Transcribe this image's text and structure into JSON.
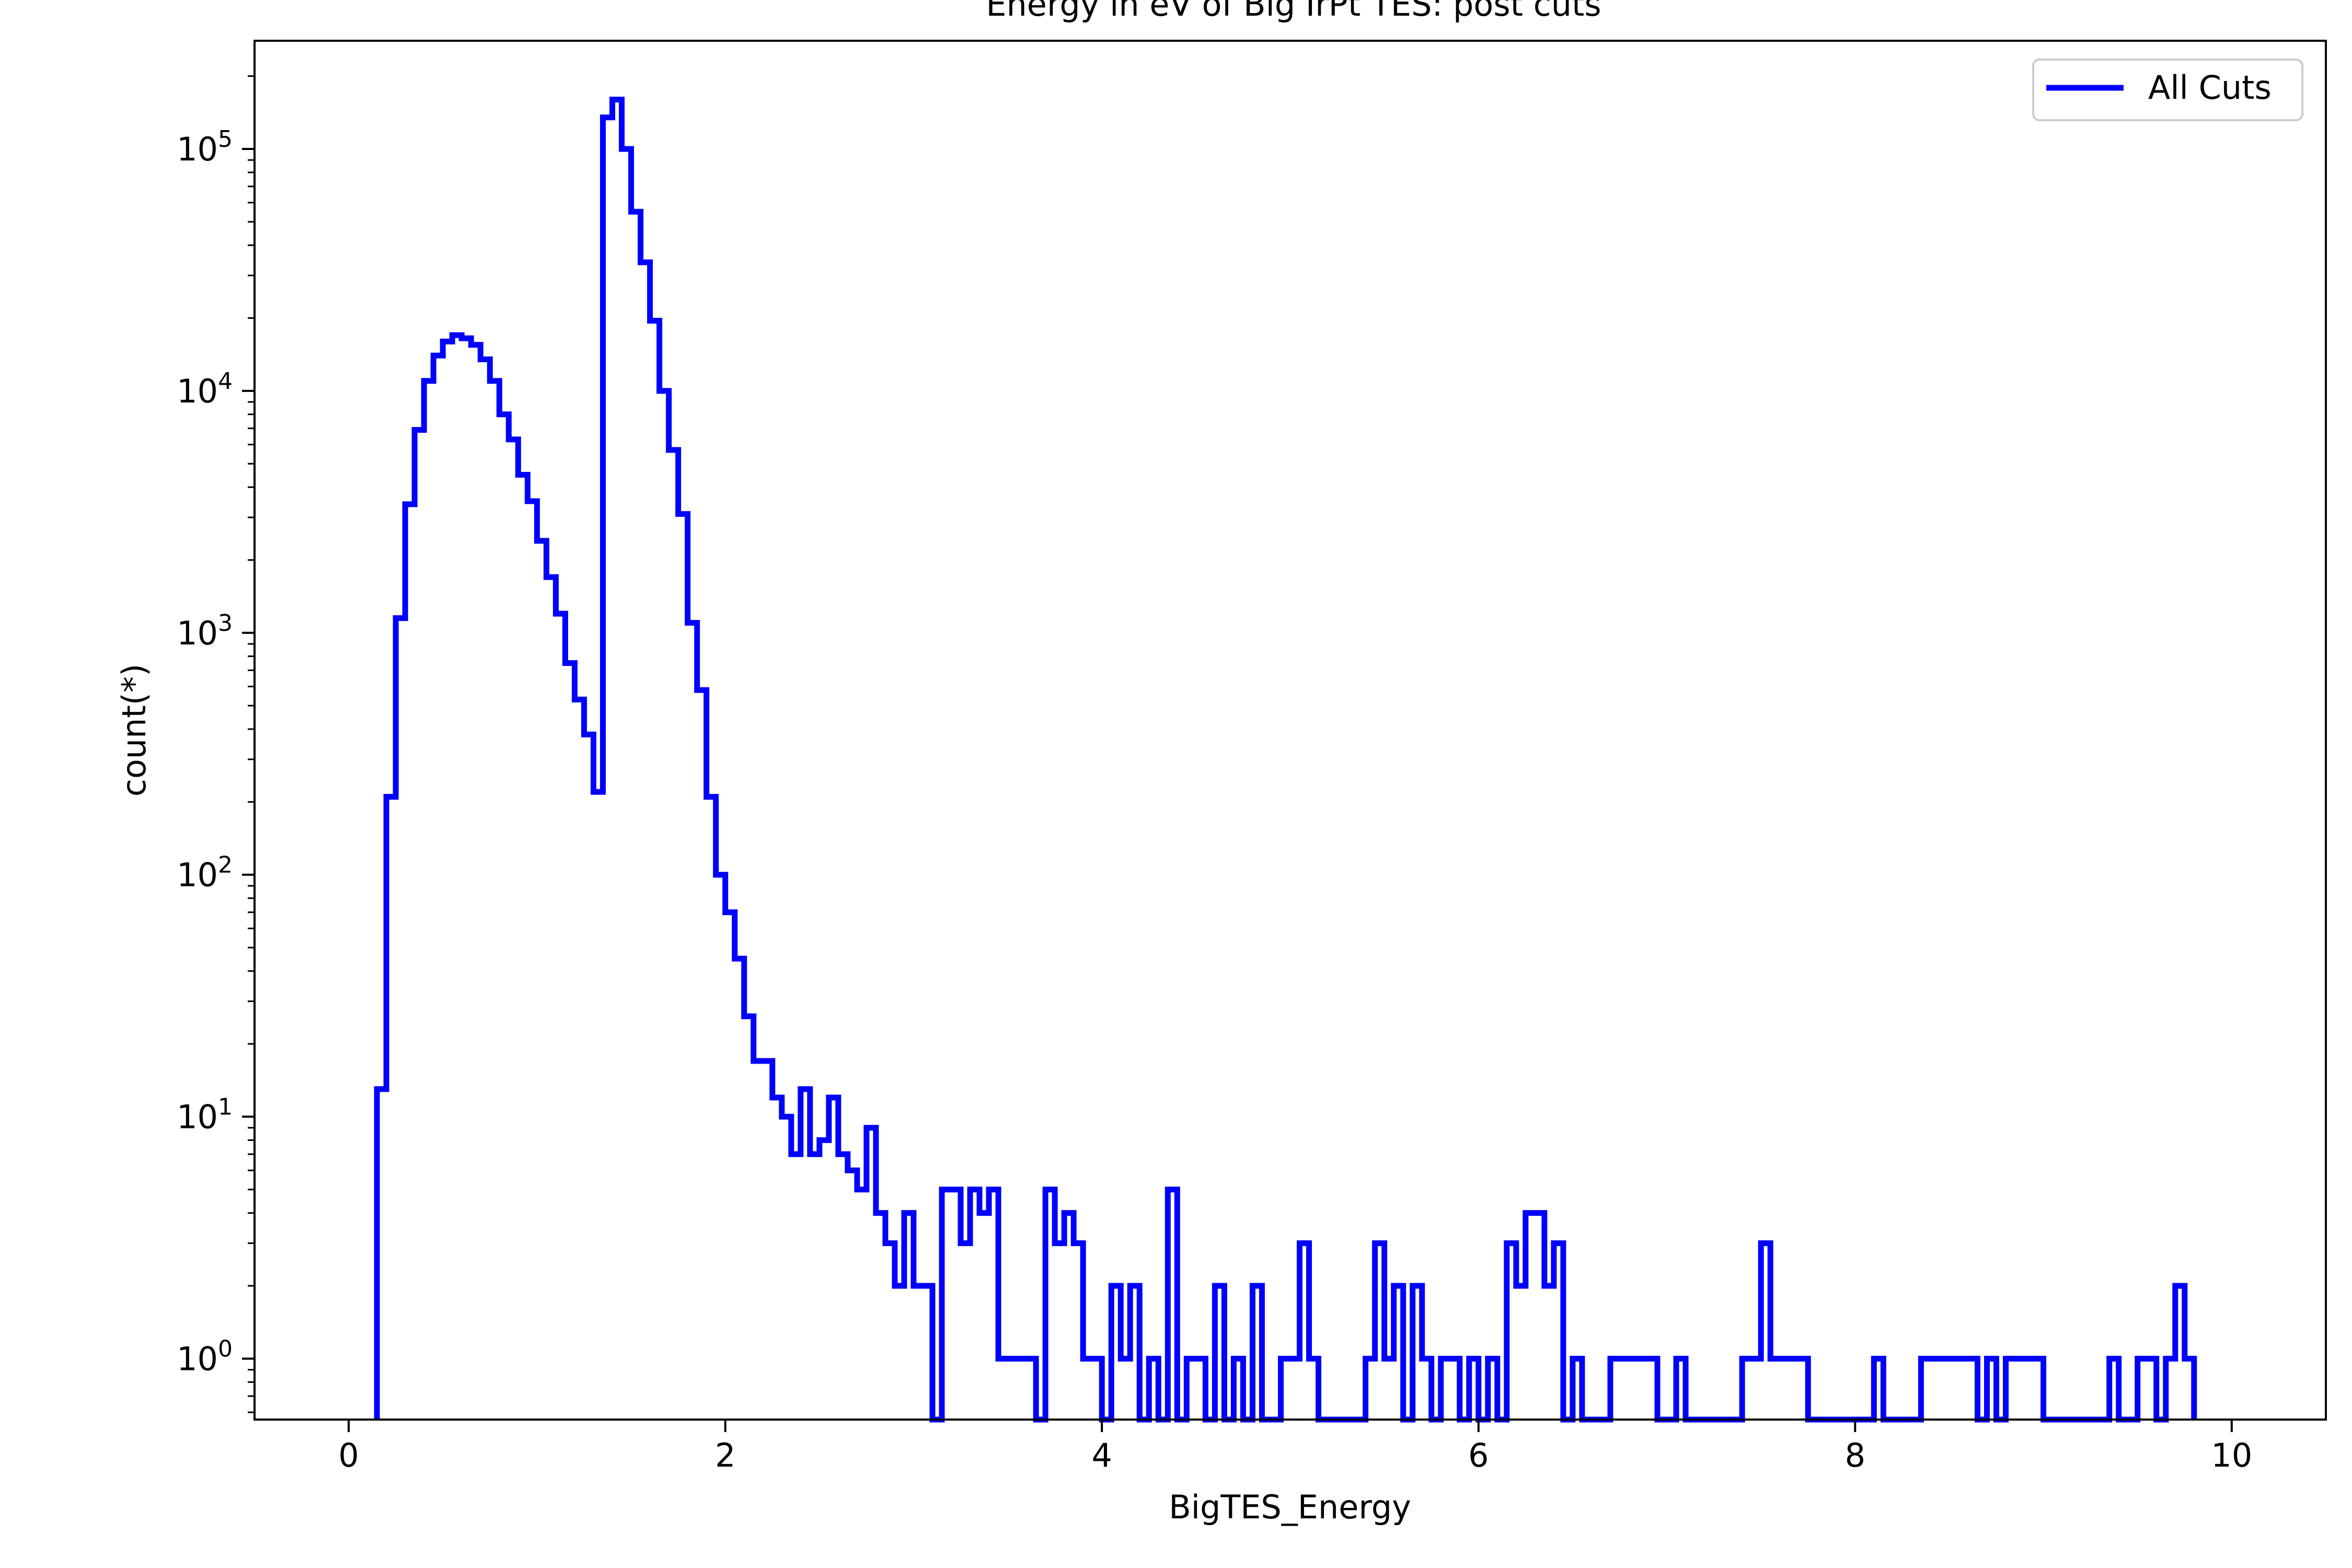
{
  "chart_data": {
    "type": "step-histogram",
    "title": "Energy in eV of Big IrPt TES: post cuts",
    "xlabel": "BigTES_Energy",
    "ylabel": "count(*)",
    "xlim": [
      -0.5,
      10.5
    ],
    "ylim": [
      0.56,
      280000
    ],
    "yscale": "log",
    "x_ticks": [
      0,
      2,
      4,
      6,
      8,
      10
    ],
    "y_ticks": [
      1,
      10,
      100,
      1000,
      10000,
      100000
    ],
    "x_tick_labels": [
      "0",
      "2",
      "4",
      "6",
      "8",
      "10"
    ],
    "y_tick_labels": [
      {
        "base": "10",
        "exp": "0"
      },
      {
        "base": "10",
        "exp": "1"
      },
      {
        "base": "10",
        "exp": "2"
      },
      {
        "base": "10",
        "exp": "3"
      },
      {
        "base": "10",
        "exp": "4"
      },
      {
        "base": "10",
        "exp": "5"
      }
    ],
    "grid": false,
    "legend": {
      "position": "top-right",
      "entries": [
        "All Cuts"
      ]
    },
    "series": [
      {
        "name": "All Cuts",
        "color": "#0000ff",
        "bin_width": 0.05,
        "bins": [
          [
            0.15,
            13
          ],
          [
            0.2,
            210
          ],
          [
            0.25,
            1150
          ],
          [
            0.3,
            3400
          ],
          [
            0.35,
            6900
          ],
          [
            0.4,
            11000
          ],
          [
            0.45,
            14000
          ],
          [
            0.5,
            16000
          ],
          [
            0.55,
            17000
          ],
          [
            0.6,
            16500
          ],
          [
            0.65,
            15500
          ],
          [
            0.7,
            13500
          ],
          [
            0.75,
            11000
          ],
          [
            0.8,
            8000
          ],
          [
            0.85,
            6300
          ],
          [
            0.9,
            4500
          ],
          [
            0.95,
            3500
          ],
          [
            1.0,
            2400
          ],
          [
            1.05,
            1700
          ],
          [
            1.1,
            1200
          ],
          [
            1.15,
            750
          ],
          [
            1.2,
            530
          ],
          [
            1.25,
            380
          ],
          [
            1.3,
            220
          ],
          [
            1.35,
            135000
          ],
          [
            1.4,
            160000
          ],
          [
            1.45,
            100000
          ],
          [
            1.5,
            55000
          ],
          [
            1.55,
            34000
          ],
          [
            1.6,
            19500
          ],
          [
            1.65,
            10000
          ],
          [
            1.7,
            5700
          ],
          [
            1.75,
            3100
          ],
          [
            1.8,
            1100
          ],
          [
            1.85,
            580
          ],
          [
            1.9,
            210
          ],
          [
            1.95,
            100
          ],
          [
            2.0,
            70
          ],
          [
            2.05,
            45
          ],
          [
            2.1,
            26
          ],
          [
            2.15,
            17
          ],
          [
            2.2,
            17
          ],
          [
            2.25,
            12
          ],
          [
            2.3,
            10
          ],
          [
            2.35,
            7
          ],
          [
            2.4,
            13
          ],
          [
            2.45,
            7
          ],
          [
            2.5,
            8
          ],
          [
            2.55,
            12
          ],
          [
            2.6,
            7
          ],
          [
            2.65,
            6
          ],
          [
            2.7,
            5
          ],
          [
            2.75,
            9
          ],
          [
            2.8,
            4
          ],
          [
            2.85,
            3
          ],
          [
            2.9,
            2
          ],
          [
            2.95,
            4
          ],
          [
            3.0,
            2
          ],
          [
            3.05,
            2
          ],
          [
            3.1,
            0.3
          ],
          [
            3.15,
            5
          ],
          [
            3.2,
            5
          ],
          [
            3.25,
            3
          ],
          [
            3.3,
            5
          ],
          [
            3.35,
            4
          ],
          [
            3.4,
            5
          ],
          [
            3.45,
            1
          ],
          [
            3.5,
            1
          ],
          [
            3.55,
            1
          ],
          [
            3.6,
            1
          ],
          [
            3.65,
            0.3
          ],
          [
            3.7,
            5
          ],
          [
            3.75,
            3
          ],
          [
            3.8,
            4
          ],
          [
            3.85,
            3
          ],
          [
            3.9,
            1
          ],
          [
            3.95,
            1
          ],
          [
            4.0,
            0.3
          ],
          [
            4.05,
            2
          ],
          [
            4.1,
            1
          ],
          [
            4.15,
            2
          ],
          [
            4.2,
            0.3
          ],
          [
            4.25,
            1
          ],
          [
            4.3,
            0.3
          ],
          [
            4.35,
            5
          ],
          [
            4.4,
            0.3
          ],
          [
            4.45,
            1
          ],
          [
            4.5,
            1
          ],
          [
            4.55,
            0.3
          ],
          [
            4.6,
            2
          ],
          [
            4.65,
            0.3
          ],
          [
            4.7,
            1
          ],
          [
            4.75,
            0.3
          ],
          [
            4.8,
            2
          ],
          [
            4.85,
            0.3
          ],
          [
            4.9,
            0.3
          ],
          [
            4.95,
            1
          ],
          [
            5.0,
            1
          ],
          [
            5.05,
            3
          ],
          [
            5.1,
            1
          ],
          [
            5.15,
            0.3
          ],
          [
            5.2,
            0.3
          ],
          [
            5.25,
            0.3
          ],
          [
            5.3,
            0.3
          ],
          [
            5.35,
            0.3
          ],
          [
            5.4,
            1
          ],
          [
            5.45,
            3
          ],
          [
            5.5,
            1
          ],
          [
            5.55,
            2
          ],
          [
            5.6,
            0.3
          ],
          [
            5.65,
            2
          ],
          [
            5.7,
            1
          ],
          [
            5.75,
            0.3
          ],
          [
            5.8,
            1
          ],
          [
            5.85,
            1
          ],
          [
            5.9,
            0.3
          ],
          [
            5.95,
            1
          ],
          [
            6.0,
            0.3
          ],
          [
            6.05,
            1
          ],
          [
            6.1,
            0.3
          ],
          [
            6.15,
            3
          ],
          [
            6.2,
            2
          ],
          [
            6.25,
            4
          ],
          [
            6.3,
            4
          ],
          [
            6.35,
            2
          ],
          [
            6.4,
            3
          ],
          [
            6.45,
            0.3
          ],
          [
            6.5,
            1
          ],
          [
            6.55,
            0.3
          ],
          [
            6.6,
            0.3
          ],
          [
            6.65,
            0.3
          ],
          [
            6.7,
            1
          ],
          [
            6.75,
            1
          ],
          [
            6.8,
            1
          ],
          [
            6.85,
            1
          ],
          [
            6.9,
            1
          ],
          [
            6.95,
            0.3
          ],
          [
            7.0,
            0.3
          ],
          [
            7.05,
            1
          ],
          [
            7.1,
            0.3
          ],
          [
            7.15,
            0.3
          ],
          [
            7.2,
            0.3
          ],
          [
            7.25,
            0.3
          ],
          [
            7.3,
            0.3
          ],
          [
            7.35,
            0.3
          ],
          [
            7.4,
            1
          ],
          [
            7.45,
            1
          ],
          [
            7.5,
            3
          ],
          [
            7.55,
            1
          ],
          [
            7.6,
            1
          ],
          [
            7.65,
            1
          ],
          [
            7.7,
            1
          ],
          [
            7.75,
            0.3
          ],
          [
            7.8,
            0.3
          ],
          [
            7.85,
            0.3
          ],
          [
            7.9,
            0.3
          ],
          [
            7.95,
            0.3
          ],
          [
            8.0,
            0.3
          ],
          [
            8.05,
            0.3
          ],
          [
            8.1,
            1
          ],
          [
            8.15,
            0.3
          ],
          [
            8.2,
            0.3
          ],
          [
            8.25,
            0.3
          ],
          [
            8.3,
            0.3
          ],
          [
            8.35,
            1
          ],
          [
            8.4,
            1
          ],
          [
            8.45,
            1
          ],
          [
            8.5,
            1
          ],
          [
            8.55,
            1
          ],
          [
            8.6,
            1
          ],
          [
            8.65,
            0.3
          ],
          [
            8.7,
            1
          ],
          [
            8.75,
            0.3
          ],
          [
            8.8,
            1
          ],
          [
            8.85,
            1
          ],
          [
            8.9,
            1
          ],
          [
            8.95,
            1
          ],
          [
            9.0,
            0.3
          ],
          [
            9.05,
            0.3
          ],
          [
            9.1,
            0.3
          ],
          [
            9.15,
            0.3
          ],
          [
            9.2,
            0.3
          ],
          [
            9.25,
            0.3
          ],
          [
            9.3,
            0.3
          ],
          [
            9.35,
            1
          ],
          [
            9.4,
            0.3
          ],
          [
            9.45,
            0.3
          ],
          [
            9.5,
            1
          ],
          [
            9.55,
            1
          ],
          [
            9.6,
            0.3
          ],
          [
            9.65,
            1
          ],
          [
            9.7,
            2
          ],
          [
            9.75,
            1
          ]
        ]
      }
    ]
  }
}
